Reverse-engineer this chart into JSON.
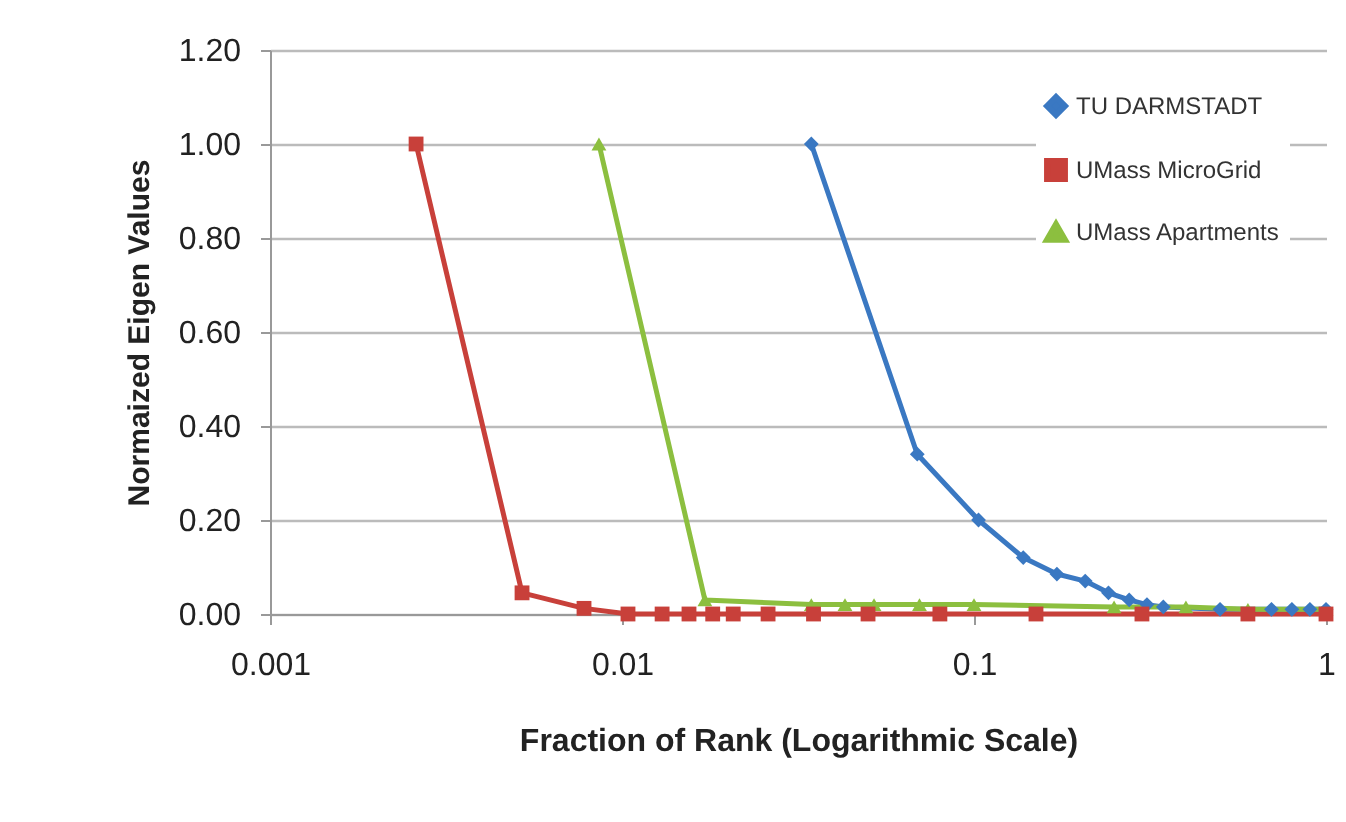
{
  "chart_data": {
    "type": "line",
    "xlabel": "Fraction of Rank (Logarithmic Scale)",
    "ylabel": "Normaized Eigen Values",
    "log": "x",
    "xlim": [
      0.001,
      1
    ],
    "xticks": [
      0.001,
      0.01,
      0.1,
      1
    ],
    "ylim": [
      0,
      1.2
    ],
    "yticks": [
      {
        "value": 0,
        "label": "0.00"
      },
      {
        "value": 0.2,
        "label": "0.20"
      },
      {
        "value": 0.4,
        "label": "0.40"
      },
      {
        "value": 0.6,
        "label": "0.60"
      },
      {
        "value": 0.8,
        "label": "0.80"
      },
      {
        "value": 1,
        "label": "1.00"
      },
      {
        "value": 1.2,
        "label": "1.20"
      }
    ],
    "grid": "y",
    "legend": "top right",
    "line_style": "solid",
    "series": [
      {
        "name": "TU DARMSTADT",
        "color": "#3a78c2",
        "marker": "diamond",
        "x": [
          0.0345,
          0.069,
          0.103,
          0.138,
          0.172,
          0.207,
          0.241,
          0.276,
          0.31,
          0.345,
          0.5,
          0.7,
          0.8,
          0.9,
          1
        ],
        "values": [
          1,
          0.34,
          0.2,
          0.12,
          0.085,
          0.07,
          0.045,
          0.03,
          0.02,
          0.015,
          0.01,
          0.01,
          0.01,
          0.01,
          0.01
        ]
      },
      {
        "name": "UMass MicroGrid",
        "color": "#c8403a",
        "marker": "square",
        "x": [
          0.0026,
          0.0052,
          0.0078,
          0.0104,
          0.013,
          0.0155,
          0.0181,
          0.0207,
          0.026,
          0.035,
          0.05,
          0.08,
          0.15,
          0.3,
          0.6,
          1
        ],
        "values": [
          1,
          0.045,
          0.012,
          0,
          0,
          0,
          0,
          0,
          0,
          0,
          0,
          0,
          0,
          0,
          0,
          0
        ]
      },
      {
        "name": "UMass Apartments",
        "color": "#8cbf3f",
        "marker": "triangle",
        "x": [
          0.0086,
          0.0172,
          0.0345,
          0.043,
          0.052,
          0.07,
          0.1,
          0.25,
          0.4,
          0.6,
          1
        ],
        "values": [
          1,
          0.03,
          0.02,
          0.02,
          0.02,
          0.02,
          0.02,
          0.015,
          0.015,
          0.01,
          0.01
        ]
      }
    ]
  }
}
